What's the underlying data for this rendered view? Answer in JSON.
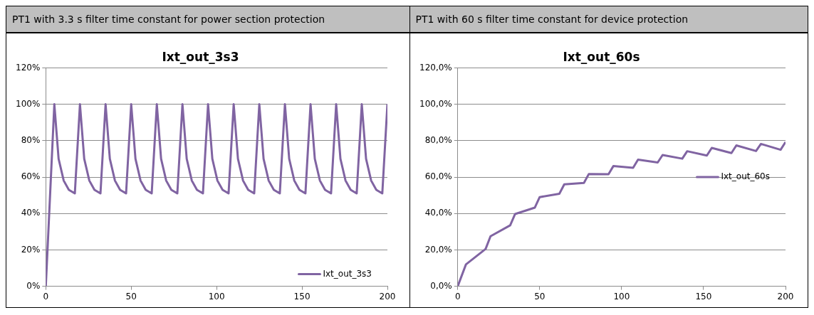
{
  "chart_data": [
    {
      "type": "line",
      "subtitle": "PT1 with 3.3 s filter time constant for power section protection",
      "title": "Ixt_out_3s3",
      "series": [
        {
          "name": "Ixt_out_3s3",
          "color": "#8064a2",
          "x": [
            0,
            5,
            7.5,
            10.5,
            13.5,
            17,
            20,
            22.5,
            25.5,
            28.5,
            32,
            35,
            37.5,
            40.5,
            43.5,
            47,
            50,
            52.5,
            55.5,
            58.5,
            62,
            65,
            67.5,
            70.5,
            73.5,
            77,
            80,
            82.5,
            85.5,
            88.5,
            92,
            95,
            97.5,
            100.5,
            103.5,
            107,
            110,
            112.5,
            115.5,
            118.5,
            122,
            125,
            127.5,
            130.5,
            133.5,
            137,
            140,
            142.5,
            145.5,
            148.5,
            152,
            155,
            157.5,
            160.5,
            163.5,
            167,
            170,
            172.5,
            175.5,
            178.5,
            182,
            185,
            187.5,
            190.5,
            193.5,
            197,
            200
          ],
          "values": [
            0,
            100,
            70,
            58,
            53,
            51,
            100,
            70,
            58,
            53,
            51,
            100,
            70,
            58,
            53,
            51,
            100,
            70,
            58,
            53,
            51,
            100,
            70,
            58,
            53,
            51,
            100,
            70,
            58,
            53,
            51,
            100,
            70,
            58,
            53,
            51,
            100,
            70,
            58,
            53,
            51,
            100,
            70,
            58,
            53,
            51,
            100,
            70,
            58,
            53,
            51,
            100,
            70,
            58,
            53,
            51,
            100,
            70,
            58,
            53,
            51,
            100,
            70,
            58,
            53,
            51,
            100
          ]
        }
      ],
      "xlim": [
        0,
        200
      ],
      "xticks": [
        0,
        50,
        100,
        150,
        200
      ],
      "ylim": [
        0,
        120
      ],
      "yticks": [
        {
          "value": 0,
          "label": "0%"
        },
        {
          "value": 20,
          "label": "20%"
        },
        {
          "value": 40,
          "label": "40%"
        },
        {
          "value": 60,
          "label": "60%"
        },
        {
          "value": 80,
          "label": "80%"
        },
        {
          "value": 100,
          "label": "100%"
        },
        {
          "value": 120,
          "label": "120%"
        }
      ],
      "grid": "y",
      "legend": "bottom right",
      "marker": "none",
      "line_style": "solid"
    },
    {
      "type": "line",
      "subtitle": "PT1 with 60 s filter time constant for device protection",
      "title": "Ixt_out_60s",
      "series": [
        {
          "name": "Ixt_out_60s",
          "color": "#8064a2",
          "x": [
            0,
            5,
            17,
            20,
            32,
            35,
            47,
            50,
            62,
            65,
            77,
            80,
            92,
            95,
            107,
            110,
            122,
            125,
            137,
            140,
            152,
            155,
            167,
            170,
            182,
            185,
            197,
            200
          ],
          "values": [
            0,
            12,
            20.5,
            27.5,
            33.5,
            39.7,
            43.2,
            49,
            50.8,
            56,
            56.8,
            61.7,
            61.6,
            66.1,
            65.1,
            69.6,
            68,
            72.1,
            70.1,
            74.2,
            71.8,
            76,
            73.2,
            77.4,
            74.3,
            78.2,
            75,
            79.2
          ]
        }
      ],
      "xlim": [
        0,
        200
      ],
      "xticks": [
        0,
        50,
        100,
        150,
        200
      ],
      "ylim": [
        0,
        120
      ],
      "yticks": [
        {
          "value": 0,
          "label": "0,0%"
        },
        {
          "value": 20,
          "label": "20,0%"
        },
        {
          "value": 40,
          "label": "40,0%"
        },
        {
          "value": 60,
          "label": "60,0%"
        },
        {
          "value": 80,
          "label": "80,0%"
        },
        {
          "value": 100,
          "label": "100,0%"
        },
        {
          "value": 120,
          "label": "120,0%"
        }
      ],
      "grid": "y",
      "legend": "right",
      "marker": "none",
      "line_style": "solid"
    }
  ]
}
